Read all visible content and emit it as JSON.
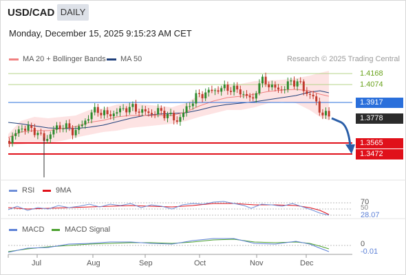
{
  "header": {
    "symbol": "USD/CAD",
    "period": "DAILY",
    "datetime": "Monday, December 15, 2025 9:15:23 AM CET"
  },
  "legend": {
    "bollinger": "MA 20 + Bollinger Bands",
    "ma50": "MA 50",
    "credit": "Research © 2025 Trading Central"
  },
  "price_levels": [
    {
      "label": "1.4168",
      "value": 1.4168,
      "kind": "resistance",
      "color": "#6aa31d"
    },
    {
      "label": "1.4074",
      "value": 1.4074,
      "kind": "resistance",
      "color": "#6aa31d"
    },
    {
      "label": "1.3917",
      "value": 1.3917,
      "kind": "pivot",
      "color": "#2a6fdb"
    },
    {
      "label": "1.3778",
      "value": 1.3778,
      "kind": "last",
      "color": "#2b2b2b"
    },
    {
      "label": "1.3565",
      "value": 1.3565,
      "kind": "support",
      "color": "#e0101a"
    },
    {
      "label": "1.3472",
      "value": 1.3472,
      "kind": "support",
      "color": "#e0101a"
    }
  ],
  "rsi": {
    "label": "RSI",
    "ma_label": "9MA",
    "level_70": "70",
    "level_50": "50",
    "value": "28.07"
  },
  "macd": {
    "label": "MACD",
    "signal_label": "MACD Signal",
    "zero": "0",
    "value": "-0.01"
  },
  "x_axis": [
    "Jul",
    "Aug",
    "Sep",
    "Oct",
    "Nov",
    "Dec"
  ],
  "colors": {
    "up_candle": "#2e8b2e",
    "down_candle": "#c0392b",
    "ma20": "#f08080",
    "ma50": "#1f3f7a",
    "band_fill": "#fde3e3",
    "rsi": "#6f8fd8",
    "rsi_ma": "#e0101a",
    "macd": "#5b7fd6",
    "macd_signal": "#4aa02c"
  }
}
